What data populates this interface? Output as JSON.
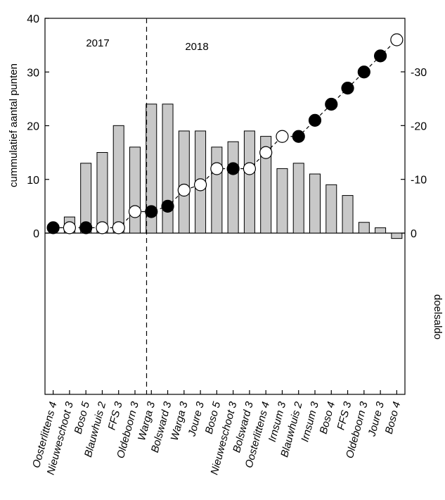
{
  "chart_data": {
    "type": "bar+scatter",
    "categories": [
      "Oosterlittens 4",
      "Nieuweschoot 3",
      "Boso 5",
      "Blauwhuis 2",
      "FFS 3",
      "Oldeboorn 3",
      "Warga 3",
      "Bolsward 3",
      "Warga 3",
      "Joure 3",
      "Boso 5",
      "Nieuweschoot 3",
      "Bolsward 3",
      "Oosterlittens 4",
      "Irnsum 3",
      "Blauwhuis 2",
      "Irnsum 3",
      "Boso 4",
      "FFS 3",
      "Oldeboorn 3",
      "Joure 3",
      "Boso 4"
    ],
    "series": [
      {
        "name": "doelsaldo",
        "type": "bar",
        "axis": "right",
        "color": "#c8c8c8",
        "values": [
          0,
          -3,
          -13,
          -15,
          -20,
          -16,
          -24,
          -24,
          -19,
          -19,
          -16,
          -17,
          -19,
          -18,
          -12,
          -13,
          -11,
          -9,
          -7,
          -2,
          -1,
          1
        ]
      },
      {
        "name": "cummulatief aantal punten",
        "type": "scatter-line",
        "axis": "left",
        "values": [
          1,
          1,
          1,
          1,
          1,
          4,
          4,
          5,
          8,
          9,
          12,
          12,
          12,
          15,
          18,
          18,
          21,
          24,
          27,
          30,
          33,
          36
        ],
        "filled": [
          true,
          false,
          true,
          false,
          false,
          false,
          true,
          true,
          false,
          false,
          false,
          true,
          false,
          false,
          false,
          true,
          true,
          true,
          true,
          true,
          true,
          false
        ]
      }
    ],
    "left_axis": {
      "label": "cummulatief aantal punten",
      "range": [
        0,
        40
      ],
      "ticks": [
        "0",
        "10",
        "20",
        "30",
        "40"
      ]
    },
    "right_axis": {
      "label": "doelsaldo",
      "range": [
        -30,
        0
      ],
      "ticks": [
        "0",
        "-10",
        "-20",
        "-30"
      ]
    },
    "periods": [
      "2017",
      "2018"
    ],
    "divider_after_index": 5,
    "grid": false,
    "legend": "none",
    "colors": {
      "bar_fill": "#c8c8c8",
      "marker_filled": "#000000",
      "marker_open": "#ffffff"
    }
  }
}
